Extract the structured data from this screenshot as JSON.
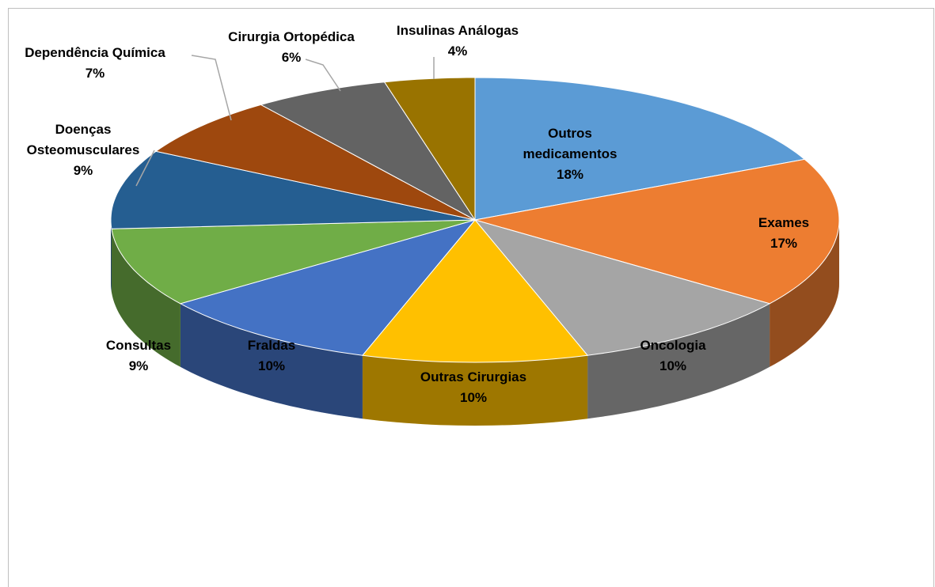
{
  "chart_data": {
    "type": "pie3d",
    "categories": [
      "Outros medicamentos",
      "Exames",
      "Oncologia",
      "Outras Cirurgias",
      "Fraldas",
      "Consultas",
      "Doenças Osteomusculares",
      "Dependência Química",
      "Cirurgia Ortopédica",
      "Insulinas Análogas"
    ],
    "values": [
      18,
      17,
      10,
      10,
      10,
      9,
      9,
      7,
      6,
      4
    ],
    "value_labels": [
      "18%",
      "17%",
      "10%",
      "10%",
      "10%",
      "9%",
      "9%",
      "7%",
      "6%",
      "4%"
    ],
    "colors": [
      "#5b9bd5",
      "#ed7d31",
      "#a5a5a5",
      "#ffc000",
      "#4472c4",
      "#70ad47",
      "#255e91",
      "#9e480e",
      "#636363",
      "#997300"
    ]
  }
}
